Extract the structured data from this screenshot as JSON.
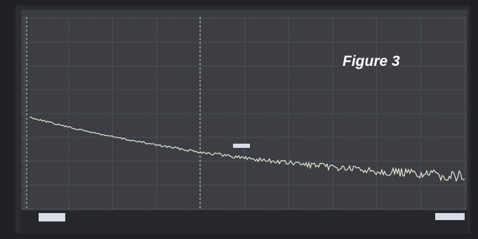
{
  "annotation": "Figure 3"
}
